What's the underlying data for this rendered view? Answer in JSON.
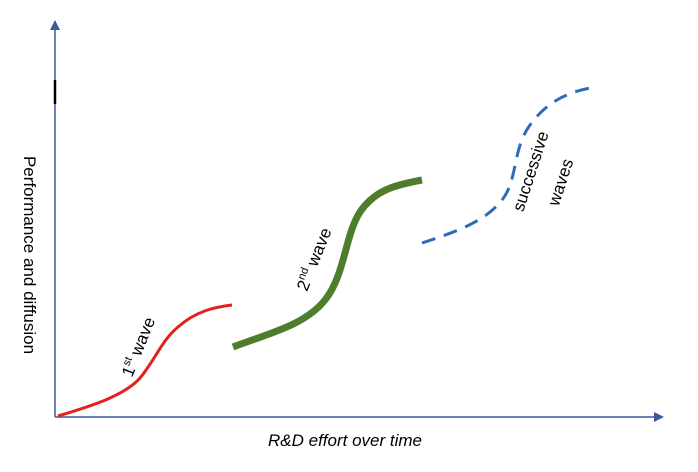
{
  "axes": {
    "x_label": "R&D effort over time",
    "y_label": "Performance and diffusion",
    "axis_color": "#3a5a9c"
  },
  "waves": {
    "first": {
      "label_base": "1",
      "label_sup": "st",
      "label_word": " wave",
      "color": "#e3211b",
      "style": "solid"
    },
    "second": {
      "label_base": "2",
      "label_sup": "nd",
      "label_word": " wave",
      "color": "#4e7d2c",
      "style": "solid-thick"
    },
    "successive": {
      "label_line1": "successive",
      "label_line2": "waves",
      "color": "#2c6db8",
      "style": "dashed"
    }
  }
}
